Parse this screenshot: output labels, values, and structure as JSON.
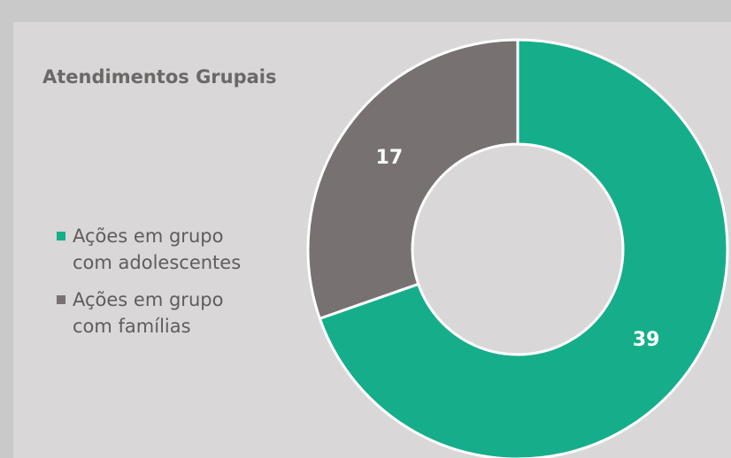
{
  "chart_data": {
    "type": "donut",
    "title": "Atendimentos Grupais",
    "categories": [
      "Ações em grupo com adolescentes",
      "Ações em grupo com famílias"
    ],
    "values": [
      39,
      17
    ],
    "colors": [
      "#16ae8a",
      "#777172"
    ],
    "legend": "left"
  }
}
